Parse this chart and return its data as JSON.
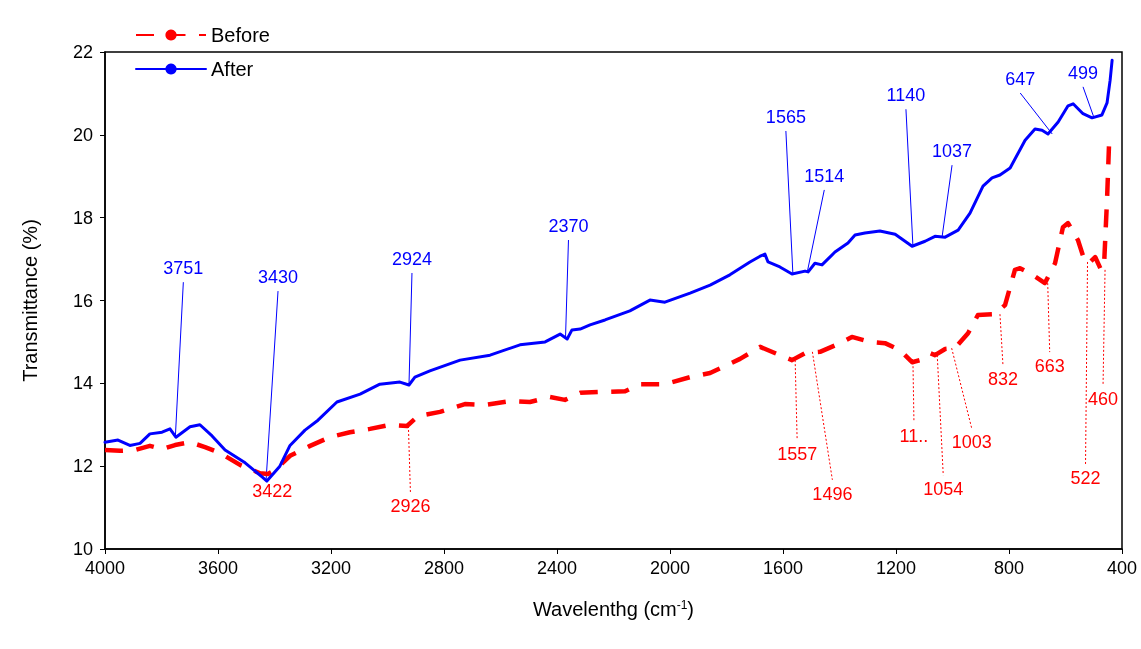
{
  "chart_data": {
    "type": "line",
    "xlabel": "Wavelenthg (cm$^{-1}$)",
    "ylabel": "Transmittance (%)",
    "xlim": [
      4000,
      400
    ],
    "xticks": [
      4000,
      3600,
      3200,
      2800,
      2400,
      2000,
      1600,
      1200,
      800,
      400
    ],
    "ylim": [
      10,
      22
    ],
    "yticks": [
      10,
      12,
      14,
      16,
      18,
      20,
      22
    ],
    "grid": false,
    "legend": "top left",
    "marker": "none",
    "series": [
      {
        "name": "Before",
        "color": "#ff0000",
        "line_style": "dashed",
        "x": [
          4000,
          3947,
          3894,
          3841,
          3798,
          3752,
          3699,
          3646,
          3593,
          3522,
          3451,
          3423,
          3398,
          3345,
          3274,
          3204,
          3133,
          3062,
          2991,
          2931,
          2892,
          2814,
          2726,
          2655,
          2566,
          2496,
          2425,
          2372,
          2318,
          2248,
          2159,
          2106,
          2018,
          1929,
          1858,
          1752,
          1681,
          1646,
          1568,
          1522,
          1469,
          1398,
          1356,
          1292,
          1239,
          1186,
          1143,
          1115,
          1080,
          1062,
          1026,
          991,
          945,
          910,
          850,
          814,
          779,
          761,
          726,
          673,
          637,
          609,
          591,
          556,
          531,
          513,
          495,
          474,
          463,
          453,
          446
        ],
        "values": [
          12.39,
          12.37,
          12.39,
          12.49,
          12.41,
          12.51,
          12.58,
          12.46,
          12.32,
          12.03,
          11.83,
          11.81,
          11.91,
          12.25,
          12.49,
          12.7,
          12.82,
          12.9,
          13.0,
          12.97,
          13.21,
          13.31,
          13.5,
          13.48,
          13.57,
          13.55,
          13.67,
          13.6,
          13.77,
          13.79,
          13.81,
          13.98,
          13.98,
          14.15,
          14.25,
          14.59,
          14.88,
          14.78,
          14.56,
          14.73,
          14.76,
          14.97,
          15.12,
          15.0,
          14.97,
          14.8,
          14.51,
          14.56,
          14.73,
          14.68,
          14.83,
          14.85,
          15.21,
          15.65,
          15.67,
          15.89,
          16.74,
          16.78,
          16.66,
          16.42,
          16.9,
          17.77,
          17.87,
          17.46,
          16.93,
          16.93,
          17.05,
          16.74,
          16.93,
          18.43,
          19.75
        ]
      },
      {
        "name": "After",
        "color": "#0000ff",
        "line_style": "solid",
        "x": [
          4000,
          3954,
          3912,
          3876,
          3841,
          3798,
          3770,
          3749,
          3699,
          3664,
          3621,
          3575,
          3504,
          3444,
          3427,
          3381,
          3345,
          3292,
          3246,
          3179,
          3097,
          3027,
          2956,
          2924,
          2903,
          2850,
          2743,
          2637,
          2531,
          2442,
          2389,
          2364,
          2347,
          2318,
          2283,
          2230,
          2142,
          2071,
          2018,
          1929,
          1858,
          1788,
          1717,
          1681,
          1664,
          1653,
          1611,
          1568,
          1522,
          1511,
          1487,
          1462,
          1416,
          1370,
          1345,
          1310,
          1257,
          1203,
          1143,
          1097,
          1062,
          1026,
          980,
          938,
          892,
          860,
          832,
          796,
          743,
          708,
          683,
          662,
          626,
          591,
          573,
          538,
          506,
          471,
          453,
          442,
          435
        ],
        "values": [
          12.58,
          12.63,
          12.5,
          12.55,
          12.78,
          12.82,
          12.9,
          12.7,
          12.95,
          13.0,
          12.73,
          12.39,
          12.08,
          11.74,
          11.64,
          12.0,
          12.5,
          12.87,
          13.11,
          13.55,
          13.74,
          13.98,
          14.03,
          13.96,
          14.15,
          14.3,
          14.56,
          14.68,
          14.93,
          15.0,
          15.19,
          15.07,
          15.29,
          15.31,
          15.41,
          15.53,
          15.75,
          16.01,
          15.96,
          16.18,
          16.37,
          16.62,
          16.93,
          17.07,
          17.12,
          16.93,
          16.81,
          16.64,
          16.71,
          16.69,
          16.9,
          16.86,
          17.17,
          17.39,
          17.58,
          17.63,
          17.68,
          17.6,
          17.31,
          17.43,
          17.55,
          17.53,
          17.7,
          18.11,
          18.76,
          18.96,
          19.03,
          19.2,
          19.87,
          20.14,
          20.11,
          20.02,
          20.31,
          20.7,
          20.75,
          20.51,
          20.41,
          20.48,
          20.77,
          21.32,
          21.8
        ]
      }
    ],
    "annotations": [
      {
        "text": "3751",
        "x": 3751,
        "y": 12.7
      },
      {
        "text": "3430",
        "x": 3430,
        "y": 11.64
      },
      {
        "text": "2924",
        "x": 2924,
        "y": 13.96
      },
      {
        "text": "2370",
        "x": 2370,
        "y": 15.07
      },
      {
        "text": "1565",
        "x": 1565,
        "y": 16.64
      },
      {
        "text": "1514",
        "x": 1514,
        "y": 16.69
      },
      {
        "text": "1140",
        "x": 1140,
        "y": 17.31
      },
      {
        "text": "1037",
        "x": 1037,
        "y": 17.53
      },
      {
        "text": "647",
        "x": 647,
        "y": 20.02
      },
      {
        "text": "499",
        "x": 499,
        "y": 20.41
      },
      {
        "text": "3422",
        "x": 3422,
        "y": 11.81
      },
      {
        "text": "2926",
        "x": 2926,
        "y": 12.97
      },
      {
        "text": "1557",
        "x": 1557,
        "y": 14.56
      },
      {
        "text": "1496",
        "x": 1496,
        "y": 14.76
      },
      {
        "text": "11..",
        "x": 1140,
        "y": 14.51
      },
      {
        "text": "1054",
        "x": 1054,
        "y": 14.68
      },
      {
        "text": "1003",
        "x": 1003,
        "y": 14.85
      },
      {
        "text": "832",
        "x": 832,
        "y": 15.67
      },
      {
        "text": "663",
        "x": 663,
        "y": 16.42
      },
      {
        "text": "522",
        "x": 522,
        "y": 16.93
      },
      {
        "text": "460",
        "x": 460,
        "y": 16.74
      }
    ]
  }
}
